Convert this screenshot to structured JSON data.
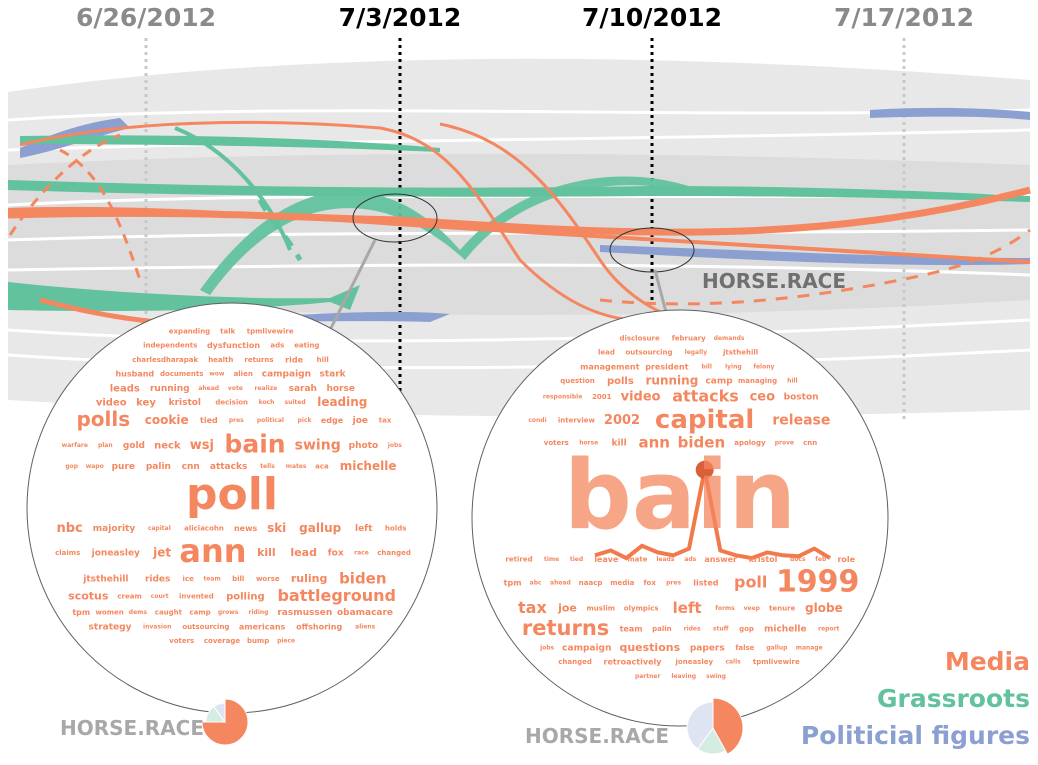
{
  "chart_data": {
    "type": "flow",
    "dates": [
      "6/26/2012",
      "7/3/2012",
      "7/10/2012",
      "7/17/2012"
    ],
    "highlighted_dates": [
      "7/3/2012",
      "7/10/2012"
    ],
    "flow_label": "HORSE.RACE",
    "legend": [
      {
        "name": "Media",
        "color": "#f4875f"
      },
      {
        "name": "Grassroots",
        "color": "#62c29d"
      },
      {
        "name": "Politicial figures",
        "color": "#8b9fd1"
      }
    ],
    "word_clouds": [
      {
        "caption": "HORSE.RACE",
        "pie": {
          "Media": 0.75,
          "Grassroots": 0.15,
          "Politicial figures": 0.1
        },
        "words": [
          {
            "t": "expanding",
            "s": 7
          },
          {
            "t": "talk",
            "s": 7
          },
          {
            "t": "tpmlivewire",
            "s": 7
          },
          {
            "t": "independents",
            "s": 7
          },
          {
            "t": "dysfunction",
            "s": 8
          },
          {
            "t": "ads",
            "s": 7
          },
          {
            "t": "eating",
            "s": 7
          },
          {
            "t": "charlesdharapak",
            "s": 7
          },
          {
            "t": "health",
            "s": 7
          },
          {
            "t": "returns",
            "s": 7
          },
          {
            "t": "ride",
            "s": 8
          },
          {
            "t": "hill",
            "s": 7
          },
          {
            "t": "husband",
            "s": 8
          },
          {
            "t": "documents",
            "s": 7
          },
          {
            "t": "wow",
            "s": 6
          },
          {
            "t": "alien",
            "s": 7
          },
          {
            "t": "campaign",
            "s": 9
          },
          {
            "t": "stark",
            "s": 9
          },
          {
            "t": "leads",
            "s": 10
          },
          {
            "t": "running",
            "s": 9
          },
          {
            "t": "ahead",
            "s": 6
          },
          {
            "t": "vote",
            "s": 6
          },
          {
            "t": "realize",
            "s": 6
          },
          {
            "t": "sarah",
            "s": 9
          },
          {
            "t": "horse",
            "s": 9
          },
          {
            "t": "video",
            "s": 10
          },
          {
            "t": "key",
            "s": 10
          },
          {
            "t": "kristol",
            "s": 9
          },
          {
            "t": "decision",
            "s": 7
          },
          {
            "t": "koch",
            "s": 6
          },
          {
            "t": "suited",
            "s": 6
          },
          {
            "t": "leading",
            "s": 12
          },
          {
            "t": "polls",
            "s": 20
          },
          {
            "t": "cookie",
            "s": 12
          },
          {
            "t": "tied",
            "s": 8
          },
          {
            "t": "pres",
            "s": 6
          },
          {
            "t": "political",
            "s": 6
          },
          {
            "t": "pick",
            "s": 6
          },
          {
            "t": "edge",
            "s": 8
          },
          {
            "t": "joe",
            "s": 9
          },
          {
            "t": "tax",
            "s": 7
          },
          {
            "t": "warfare",
            "s": 6
          },
          {
            "t": "plan",
            "s": 6
          },
          {
            "t": "gold",
            "s": 9
          },
          {
            "t": "neck",
            "s": 10
          },
          {
            "t": "wsj",
            "s": 13
          },
          {
            "t": "bain",
            "s": 25
          },
          {
            "t": "swing",
            "s": 14
          },
          {
            "t": "photo",
            "s": 9
          },
          {
            "t": "jobs",
            "s": 6
          },
          {
            "t": "gop",
            "s": 6
          },
          {
            "t": "wapo",
            "s": 6
          },
          {
            "t": "pure",
            "s": 9
          },
          {
            "t": "palin",
            "s": 9
          },
          {
            "t": "cnn",
            "s": 9
          },
          {
            "t": "attacks",
            "s": 9
          },
          {
            "t": "tells",
            "s": 6
          },
          {
            "t": "mates",
            "s": 6
          },
          {
            "t": "aca",
            "s": 7
          },
          {
            "t": "michelle",
            "s": 12
          },
          {
            "t": "poll",
            "s": 44
          },
          {
            "t": "nbc",
            "s": 13
          },
          {
            "t": "majority",
            "s": 9
          },
          {
            "t": "capital",
            "s": 6
          },
          {
            "t": "aliciacohn",
            "s": 7
          },
          {
            "t": "news",
            "s": 8
          },
          {
            "t": "ski",
            "s": 12
          },
          {
            "t": "gallup",
            "s": 12
          },
          {
            "t": "left",
            "s": 9
          },
          {
            "t": "holds",
            "s": 7
          },
          {
            "t": "claims",
            "s": 7
          },
          {
            "t": "joneasley",
            "s": 9
          },
          {
            "t": "jet",
            "s": 12
          },
          {
            "t": "ann",
            "s": 32
          },
          {
            "t": "kill",
            "s": 11
          },
          {
            "t": "lead",
            "s": 11
          },
          {
            "t": "fox",
            "s": 9
          },
          {
            "t": "race",
            "s": 6
          },
          {
            "t": "changed",
            "s": 7
          },
          {
            "t": "jtsthehill",
            "s": 9
          },
          {
            "t": "rides",
            "s": 9
          },
          {
            "t": "ice",
            "s": 7
          },
          {
            "t": "team",
            "s": 6
          },
          {
            "t": "bill",
            "s": 7
          },
          {
            "t": "worse",
            "s": 7
          },
          {
            "t": "ruling",
            "s": 11
          },
          {
            "t": "biden",
            "s": 15
          },
          {
            "t": "scotus",
            "s": 11
          },
          {
            "t": "cream",
            "s": 7
          },
          {
            "t": "court",
            "s": 6
          },
          {
            "t": "invented",
            "s": 7
          },
          {
            "t": "polling",
            "s": 10
          },
          {
            "t": "battleground",
            "s": 16
          },
          {
            "t": "tpm",
            "s": 8
          },
          {
            "t": "women",
            "s": 7
          },
          {
            "t": "dems",
            "s": 6
          },
          {
            "t": "caught",
            "s": 7
          },
          {
            "t": "camp",
            "s": 7
          },
          {
            "t": "grows",
            "s": 6
          },
          {
            "t": "riding",
            "s": 6
          },
          {
            "t": "rasmussen",
            "s": 9
          },
          {
            "t": "obamacare",
            "s": 9
          },
          {
            "t": "strategy",
            "s": 9
          },
          {
            "t": "invasion",
            "s": 6
          },
          {
            "t": "outsourcing",
            "s": 7
          },
          {
            "t": "americans",
            "s": 8
          },
          {
            "t": "offshoring",
            "s": 8
          },
          {
            "t": "aliens",
            "s": 6
          },
          {
            "t": "voters",
            "s": 7
          },
          {
            "t": "coverage",
            "s": 7
          },
          {
            "t": "bump",
            "s": 7
          },
          {
            "t": "piece",
            "s": 6
          }
        ]
      },
      {
        "caption": "HORSE.RACE",
        "pie": {
          "Media": 0.42,
          "Grassroots": 0.18,
          "Politicial figures": 0.4
        },
        "sparkline": [
          0.05,
          0.1,
          0.02,
          0.15,
          0.08,
          0.05,
          0.12,
          0.95,
          0.1,
          0.05,
          0.02,
          0.08,
          0.05,
          0.04,
          0.12,
          0.02
        ],
        "words": [
          {
            "t": "disclosure",
            "s": 7
          },
          {
            "t": "february",
            "s": 7
          },
          {
            "t": "demands",
            "s": 6
          },
          {
            "t": "lead",
            "s": 7
          },
          {
            "t": "outsourcing",
            "s": 7
          },
          {
            "t": "legally",
            "s": 6
          },
          {
            "t": "jtsthehill",
            "s": 7
          },
          {
            "t": "management",
            "s": 8
          },
          {
            "t": "president",
            "s": 8
          },
          {
            "t": "bill",
            "s": 6
          },
          {
            "t": "lying",
            "s": 6
          },
          {
            "t": "felony",
            "s": 6
          },
          {
            "t": "question",
            "s": 7
          },
          {
            "t": "polls",
            "s": 10
          },
          {
            "t": "running",
            "s": 12
          },
          {
            "t": "camp",
            "s": 9
          },
          {
            "t": "managing",
            "s": 7
          },
          {
            "t": "hill",
            "s": 6
          },
          {
            "t": "responsible",
            "s": 6
          },
          {
            "t": "2001",
            "s": 7
          },
          {
            "t": "video",
            "s": 13
          },
          {
            "t": "attacks",
            "s": 16
          },
          {
            "t": "ceo",
            "s": 13
          },
          {
            "t": "boston",
            "s": 9
          },
          {
            "t": "condi",
            "s": 6
          },
          {
            "t": "interview",
            "s": 7
          },
          {
            "t": "2002",
            "s": 13
          },
          {
            "t": "capital",
            "s": 26
          },
          {
            "t": "release",
            "s": 14
          },
          {
            "t": "voters",
            "s": 7
          },
          {
            "t": "horse",
            "s": 6
          },
          {
            "t": "kill",
            "s": 9
          },
          {
            "t": "ann",
            "s": 15
          },
          {
            "t": "biden",
            "s": 15
          },
          {
            "t": "apology",
            "s": 7
          },
          {
            "t": "prove",
            "s": 6
          },
          {
            "t": "cnn",
            "s": 7
          },
          {
            "t": "bain",
            "s": 95
          },
          {
            "t": "retired",
            "s": 7
          },
          {
            "t": "time",
            "s": 6
          },
          {
            "t": "tied",
            "s": 6
          },
          {
            "t": "leave",
            "s": 8
          },
          {
            "t": "mate",
            "s": 7
          },
          {
            "t": "leads",
            "s": 6
          },
          {
            "t": "ads",
            "s": 6
          },
          {
            "t": "answer",
            "s": 8
          },
          {
            "t": "kristol",
            "s": 8
          },
          {
            "t": "docs",
            "s": 6
          },
          {
            "t": "feb",
            "s": 6
          },
          {
            "t": "role",
            "s": 8
          },
          {
            "t": "tpm",
            "s": 8
          },
          {
            "t": "abc",
            "s": 6
          },
          {
            "t": "ahead",
            "s": 6
          },
          {
            "t": "naacp",
            "s": 7
          },
          {
            "t": "media",
            "s": 7
          },
          {
            "t": "fox",
            "s": 7
          },
          {
            "t": "pres",
            "s": 6
          },
          {
            "t": "listed",
            "s": 8
          },
          {
            "t": "poll",
            "s": 16
          },
          {
            "t": "1999",
            "s": 30
          },
          {
            "t": "tax",
            "s": 16
          },
          {
            "t": "joe",
            "s": 11
          },
          {
            "t": "muslim",
            "s": 7
          },
          {
            "t": "olympics",
            "s": 7
          },
          {
            "t": "left",
            "s": 15
          },
          {
            "t": "forms",
            "s": 6
          },
          {
            "t": "veep",
            "s": 6
          },
          {
            "t": "tenure",
            "s": 7
          },
          {
            "t": "globe",
            "s": 12
          },
          {
            "t": "returns",
            "s": 21
          },
          {
            "t": "team",
            "s": 8
          },
          {
            "t": "palin",
            "s": 7
          },
          {
            "t": "rides",
            "s": 6
          },
          {
            "t": "stuff",
            "s": 6
          },
          {
            "t": "gop",
            "s": 7
          },
          {
            "t": "michelle",
            "s": 9
          },
          {
            "t": "report",
            "s": 6
          },
          {
            "t": "jobs",
            "s": 6
          },
          {
            "t": "campaign",
            "s": 9
          },
          {
            "t": "questions",
            "s": 11
          },
          {
            "t": "papers",
            "s": 9
          },
          {
            "t": "false",
            "s": 7
          },
          {
            "t": "gallup",
            "s": 6
          },
          {
            "t": "manage",
            "s": 6
          },
          {
            "t": "changed",
            "s": 7
          },
          {
            "t": "retroactively",
            "s": 8
          },
          {
            "t": "joneasley",
            "s": 7
          },
          {
            "t": "calls",
            "s": 6
          },
          {
            "t": "tpmlivewire",
            "s": 7
          },
          {
            "t": "partner",
            "s": 6
          },
          {
            "t": "leaving",
            "s": 6
          },
          {
            "t": "swing",
            "s": 6
          }
        ]
      }
    ]
  }
}
